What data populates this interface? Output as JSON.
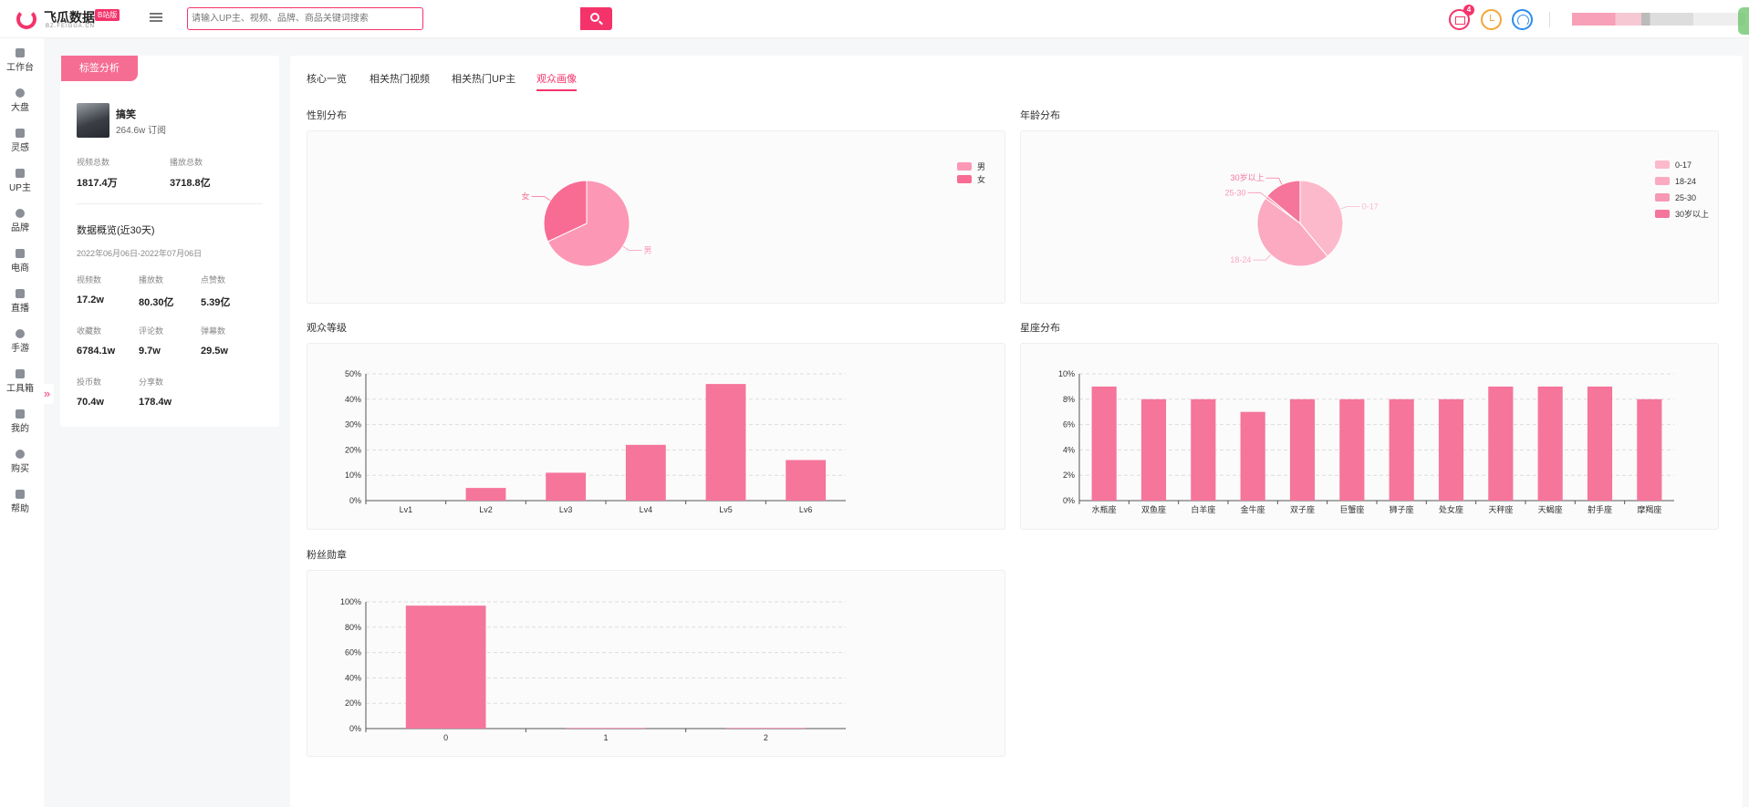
{
  "header": {
    "logo_name": "飞瓜数据",
    "logo_badge": "B站版",
    "logo_sub": "BZ.FEIGUA.CN",
    "search_placeholder": "请输入UP主、视频、品牌、商品关键词搜索",
    "mail_badge": "4",
    "icons": [
      "menu-icon",
      "search-icon",
      "mail-icon",
      "clock-icon",
      "customer-service-icon"
    ]
  },
  "sidenav": {
    "items": [
      {
        "label": "工作台",
        "icon": "home-icon"
      },
      {
        "label": "大盘",
        "icon": "pie-icon"
      },
      {
        "label": "灵感",
        "icon": "bulb-icon"
      },
      {
        "label": "UP主",
        "icon": "search-icon"
      },
      {
        "label": "品牌",
        "icon": "diamond-icon"
      },
      {
        "label": "电商",
        "icon": "cart-icon"
      },
      {
        "label": "直播",
        "icon": "tv-icon"
      },
      {
        "label": "手游",
        "icon": "gamepad-icon"
      },
      {
        "label": "工具箱",
        "icon": "toolbox-icon"
      },
      {
        "label": "我的",
        "icon": "user-icon"
      },
      {
        "label": "购买",
        "icon": "card-icon"
      },
      {
        "label": "帮助",
        "icon": "help-icon"
      }
    ],
    "collapse_glyph": "»"
  },
  "profile": {
    "tab_label": "标签分析",
    "name": "搞笑",
    "subscribers": "264.6w 订阅",
    "totals": [
      {
        "label": "视频总数",
        "value": "1817.4万"
      },
      {
        "label": "播放总数",
        "value": "3718.8亿"
      }
    ],
    "overview_title": "数据概览(近30天)",
    "date_range": "2022年06月06日-2022年07月06日",
    "stats": [
      {
        "label": "视频数",
        "value": "17.2w"
      },
      {
        "label": "播放数",
        "value": "80.30亿"
      },
      {
        "label": "点赞数",
        "value": "5.39亿"
      },
      {
        "label": "收藏数",
        "value": "6784.1w"
      },
      {
        "label": "评论数",
        "value": "9.7w"
      },
      {
        "label": "弹幕数",
        "value": "29.5w"
      },
      {
        "label": "投币数",
        "value": "70.4w"
      },
      {
        "label": "分享数",
        "value": "178.4w"
      }
    ]
  },
  "tabs": [
    {
      "label": "核心一览",
      "active": false
    },
    {
      "label": "相关热门视频",
      "active": false
    },
    {
      "label": "相关热门UP主",
      "active": false
    },
    {
      "label": "观众画像",
      "active": true
    }
  ],
  "sections": {
    "gender": "性别分布",
    "age": "年龄分布",
    "level": "观众等级",
    "zodiac": "星座分布",
    "medal": "粉丝勋章"
  },
  "colors": {
    "accent": "#f5336b",
    "bar": "#f5759b",
    "male": "#fc98b5",
    "female": "#f86c93",
    "age": [
      "#fdb9cc",
      "#fbaac2",
      "#f898b5",
      "#f5759b"
    ]
  },
  "chart_data": [
    {
      "type": "pie",
      "title": "性别分布",
      "categories": [
        "男",
        "女"
      ],
      "values": [
        68,
        32
      ],
      "legend": "top-right"
    },
    {
      "type": "pie",
      "title": "年龄分布",
      "categories": [
        "0-17",
        "18-24",
        "25-30",
        "30岁以上"
      ],
      "values": [
        39,
        46,
        1,
        14
      ],
      "legend": "top-right"
    },
    {
      "type": "bar",
      "title": "观众等级",
      "categories": [
        "Lv1",
        "Lv2",
        "Lv3",
        "Lv4",
        "Lv5",
        "Lv6"
      ],
      "values": [
        0,
        5,
        11,
        22,
        46,
        16
      ],
      "ylim": [
        0,
        50
      ],
      "yticks": [
        "0%",
        "10%",
        "20%",
        "30%",
        "40%",
        "50%"
      ],
      "grid": true
    },
    {
      "type": "bar",
      "title": "星座分布",
      "categories": [
        "水瓶座",
        "双鱼座",
        "白羊座",
        "金牛座",
        "双子座",
        "巨蟹座",
        "狮子座",
        "处女座",
        "天秤座",
        "天蝎座",
        "射手座",
        "摩羯座"
      ],
      "values": [
        9,
        8,
        8,
        7,
        8,
        8,
        8,
        8,
        9,
        9,
        9,
        8
      ],
      "ylim": [
        0,
        10
      ],
      "yticks": [
        "0%",
        "2%",
        "4%",
        "6%",
        "8%",
        "10%"
      ],
      "grid": true
    },
    {
      "type": "bar",
      "title": "粉丝勋章",
      "categories": [
        "0",
        "1",
        "2"
      ],
      "values": [
        97,
        0.5,
        0.5
      ],
      "ylim": [
        0,
        100
      ],
      "yticks": [
        "0%",
        "20%",
        "40%",
        "60%",
        "80%",
        "100%"
      ],
      "grid": true
    }
  ]
}
